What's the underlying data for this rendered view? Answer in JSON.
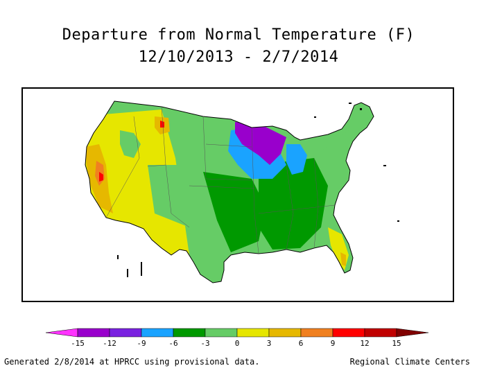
{
  "map": {
    "title_line1": "Departure from Normal Temperature (F)",
    "title_line2": "12/10/2013 - 2/7/2014",
    "region": "Contiguous United States"
  },
  "legend": {
    "tick_labels": [
      "-15",
      "-12",
      "-9",
      "-6",
      "-3",
      "0",
      "3",
      "6",
      "9",
      "12",
      "15"
    ],
    "colors": [
      "#ff33ff",
      "#9900cc",
      "#7a22e0",
      "#1aa3ff",
      "#009900",
      "#66cc66",
      "#e6e600",
      "#e6b800",
      "#f08020",
      "#ff0000",
      "#c00000",
      "#800000"
    ]
  },
  "footer": {
    "generated": "Generated 2/8/2014 at HPRCC using provisional data.",
    "credit": "Regional Climate Centers"
  }
}
